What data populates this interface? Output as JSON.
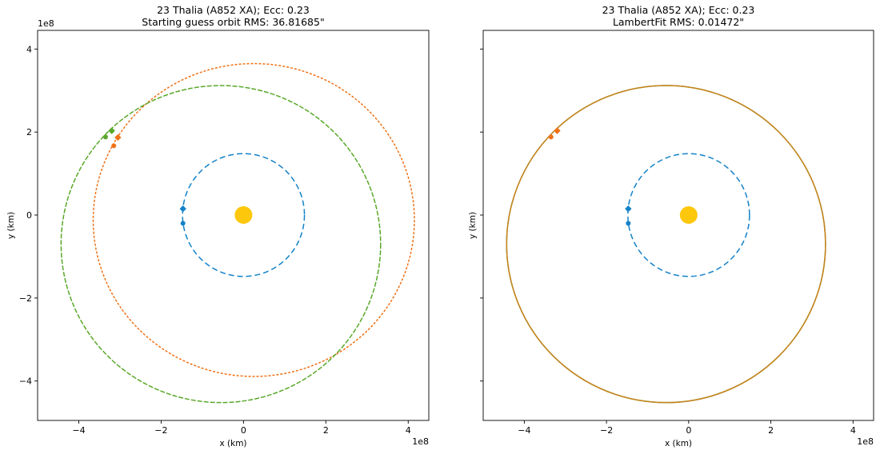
{
  "chart_data": [
    {
      "type": "scatter",
      "title_line1": "23 Thalia (A852 XA); Ecc: 0.23",
      "title_line2": "Starting guess orbit RMS: 36.81685\"",
      "xlabel": "x (km)",
      "ylabel": "y (km)",
      "x_offset_label": "1e8",
      "y_offset_label": "1e8",
      "xlim": [
        -5.0,
        4.5
      ],
      "ylim": [
        -4.95,
        4.45
      ],
      "xticks": [
        -4,
        -2,
        0,
        2,
        4
      ],
      "xtick_labels": [
        "−4",
        "−2",
        "0",
        "2",
        "4"
      ],
      "yticks": [
        4,
        2,
        0,
        -2,
        -4
      ],
      "ytick_labels": [
        "4",
        "2",
        "0",
        "−2",
        "−4"
      ],
      "show_ytick_labels": true,
      "sun": {
        "x": 0,
        "y": 0,
        "color": "#fdc70c"
      },
      "orbits": [
        {
          "cx": 0.0,
          "cy": 0.0,
          "rx": 1.48,
          "ry": 1.48,
          "color": "#1482c8",
          "dash": "7,4"
        },
        {
          "cx": 0.25,
          "cy": -0.12,
          "rx": 3.9,
          "ry": 3.77,
          "color": "#f07218",
          "dash": "3,2"
        },
        {
          "cx": -0.55,
          "cy": -0.7,
          "rx": 3.88,
          "ry": 3.82,
          "color": "#5aa82a",
          "dash": "6,2"
        }
      ],
      "markers": [
        {
          "x": -1.47,
          "y": 0.15,
          "shape": "diamond",
          "color": "#1482c8"
        },
        {
          "x": -1.47,
          "y": -0.2,
          "shape": "circle",
          "color": "#1482c8"
        },
        {
          "x": -3.05,
          "y": 1.87,
          "shape": "diamond",
          "color": "#f07218"
        },
        {
          "x": -3.15,
          "y": 1.67,
          "shape": "circle",
          "color": "#f07218"
        },
        {
          "x": -3.2,
          "y": 2.03,
          "shape": "diamond",
          "color": "#5aa82a"
        },
        {
          "x": -3.35,
          "y": 1.88,
          "shape": "circle",
          "color": "#5aa82a"
        }
      ]
    },
    {
      "type": "scatter",
      "title_line1": "23 Thalia (A852 XA); Ecc: 0.23",
      "title_line2": "LambertFit RMS: 0.01472\"",
      "xlabel": "x (km)",
      "ylabel": "y (km)",
      "x_offset_label": "1e8",
      "xlim": [
        -5.0,
        4.5
      ],
      "ylim": [
        -4.95,
        4.45
      ],
      "xticks": [
        -4,
        -2,
        0,
        2,
        4
      ],
      "xtick_labels": [
        "−4",
        "−2",
        "0",
        "2",
        "4"
      ],
      "yticks": [
        4,
        2,
        0,
        -2,
        -4
      ],
      "show_ytick_labels": false,
      "sun": {
        "x": 0,
        "y": 0,
        "color": "#fdc70c"
      },
      "orbits": [
        {
          "cx": 0.0,
          "cy": 0.0,
          "rx": 1.48,
          "ry": 1.48,
          "color": "#1482c8",
          "dash": "7,4"
        },
        {
          "cx": -0.55,
          "cy": -0.7,
          "rx": 3.88,
          "ry": 3.82,
          "color": "#5aa82a",
          "dash": ""
        },
        {
          "cx": -0.55,
          "cy": -0.7,
          "rx": 3.88,
          "ry": 3.82,
          "color": "#c9821e",
          "dash": ""
        }
      ],
      "markers": [
        {
          "x": -1.47,
          "y": 0.15,
          "shape": "diamond",
          "color": "#1482c8"
        },
        {
          "x": -1.47,
          "y": -0.2,
          "shape": "circle",
          "color": "#1482c8"
        },
        {
          "x": -3.2,
          "y": 2.03,
          "shape": "diamond",
          "color": "#f07218"
        },
        {
          "x": -3.35,
          "y": 1.88,
          "shape": "circle",
          "color": "#f07218"
        }
      ]
    }
  ]
}
